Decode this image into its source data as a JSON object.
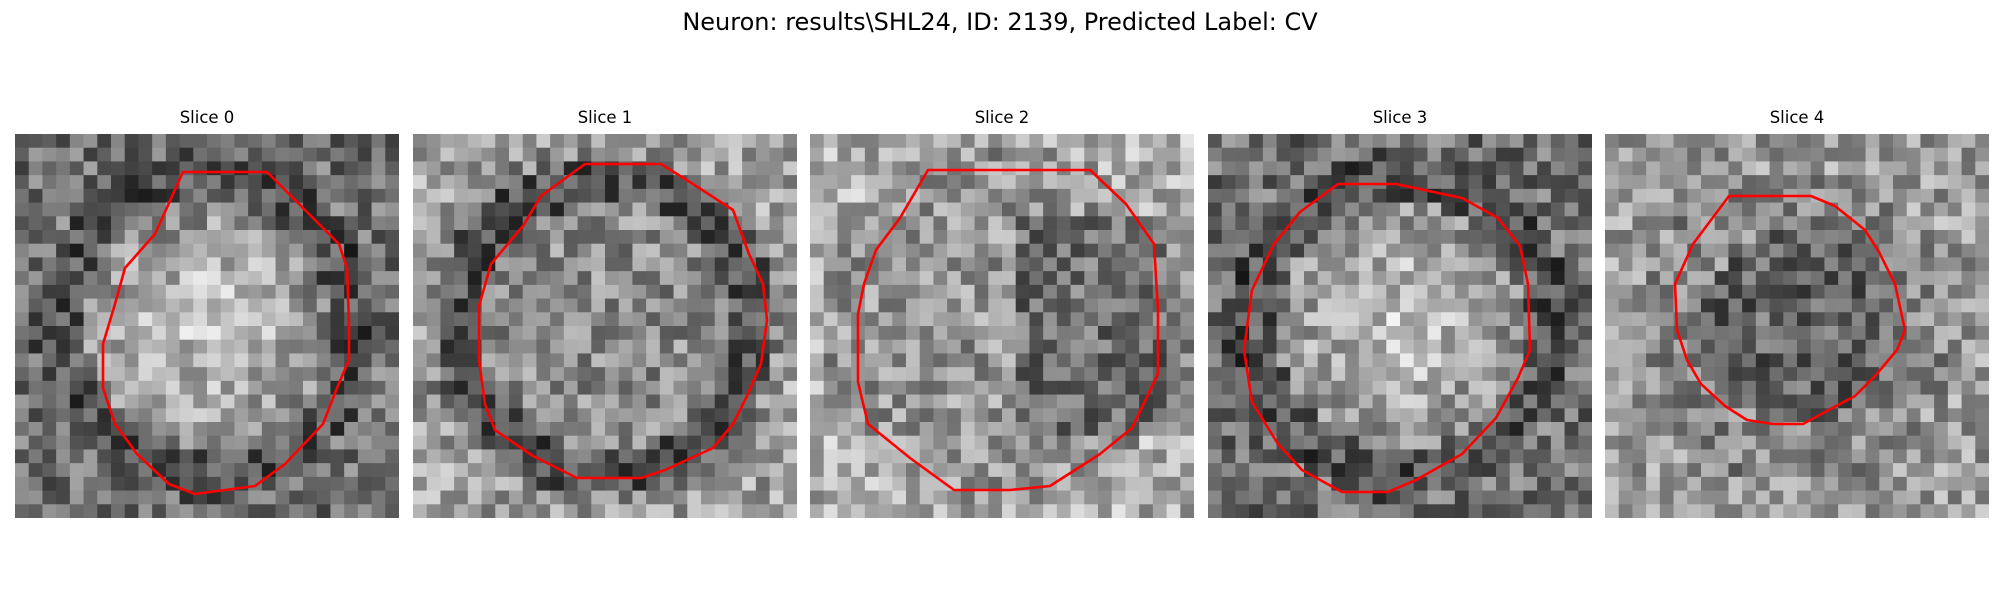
{
  "figure": {
    "title": "Neuron: results\\SHL24, ID: 2139, Predicted Label: CV",
    "contour_color": "#ff0000",
    "colormap": "gray"
  },
  "panels": [
    {
      "title": "Slice 0",
      "seed": 11,
      "tone": "light-center-dark-ring"
    },
    {
      "title": "Slice 1",
      "seed": 23,
      "tone": "mid-center-dark-ring"
    },
    {
      "title": "Slice 2",
      "seed": 37,
      "tone": "mottled-dark-right"
    },
    {
      "title": "Slice 3",
      "seed": 41,
      "tone": "light-center-dark-ring"
    },
    {
      "title": "Slice 4",
      "seed": 53,
      "tone": "noisy-dark-center"
    }
  ]
}
